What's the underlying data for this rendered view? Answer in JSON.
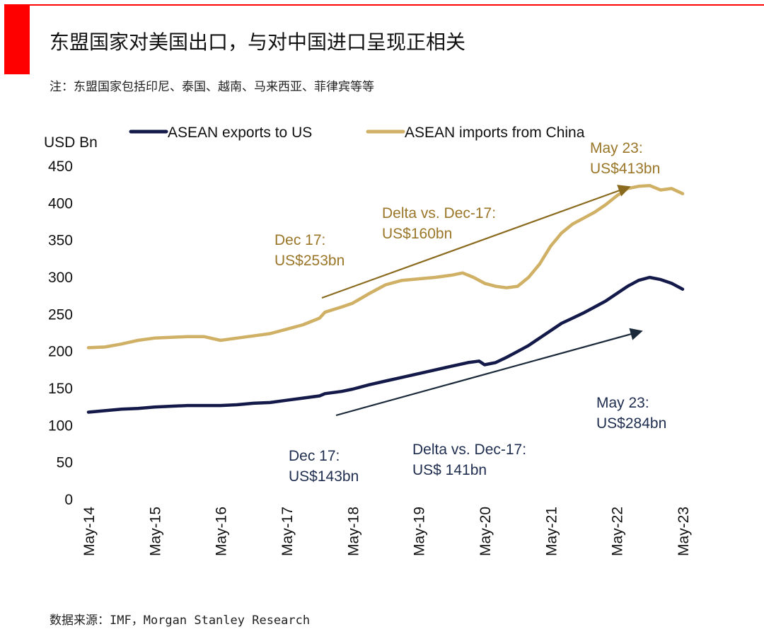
{
  "page": {
    "title": "东盟国家对美国出口，与对中国进口呈现正相关",
    "note": "注：东盟国家包括印尼、泰国、越南、马来西亚、菲律宾等等",
    "source": "数据来源：IMF，Morgan Stanley Research"
  },
  "colors": {
    "accent": "#ff0000",
    "exports": "#131a4a",
    "imports": "#cfb064",
    "imports_text": "#9a7628",
    "exports_text": "#1f2d4f"
  },
  "chart_data": {
    "type": "line",
    "ylabel": "USD Bn",
    "ylim": [
      0,
      450
    ],
    "yticks": [
      "0",
      "50",
      "100",
      "150",
      "200",
      "250",
      "300",
      "350",
      "400",
      "450"
    ],
    "xtick_labels": [
      "May-14",
      "May-15",
      "May-16",
      "May-17",
      "May-18",
      "May-19",
      "May-20",
      "May-21",
      "May-22",
      "May-23"
    ],
    "legend": [
      "ASEAN exports to US",
      "ASEAN imports from China"
    ],
    "legend_position": "top",
    "grid": false,
    "series": [
      {
        "name": "ASEAN exports to US",
        "color": "#131a4a",
        "points": [
          [
            "2014-05",
            118
          ],
          [
            "2014-08",
            120
          ],
          [
            "2014-11",
            122
          ],
          [
            "2015-02",
            123
          ],
          [
            "2015-05",
            125
          ],
          [
            "2015-08",
            126
          ],
          [
            "2015-11",
            127
          ],
          [
            "2016-02",
            127
          ],
          [
            "2016-05",
            127
          ],
          [
            "2016-08",
            128
          ],
          [
            "2016-11",
            130
          ],
          [
            "2017-02",
            131
          ],
          [
            "2017-05",
            134
          ],
          [
            "2017-08",
            137
          ],
          [
            "2017-11",
            140
          ],
          [
            "2017-12",
            143
          ],
          [
            "2018-03",
            146
          ],
          [
            "2018-05",
            149
          ],
          [
            "2018-08",
            155
          ],
          [
            "2018-11",
            160
          ],
          [
            "2019-02",
            165
          ],
          [
            "2019-05",
            170
          ],
          [
            "2019-08",
            175
          ],
          [
            "2019-11",
            180
          ],
          [
            "2020-02",
            185
          ],
          [
            "2020-04",
            187
          ],
          [
            "2020-05",
            182
          ],
          [
            "2020-07",
            185
          ],
          [
            "2020-09",
            192
          ],
          [
            "2020-11",
            200
          ],
          [
            "2021-01",
            208
          ],
          [
            "2021-03",
            218
          ],
          [
            "2021-05",
            228
          ],
          [
            "2021-07",
            238
          ],
          [
            "2021-09",
            245
          ],
          [
            "2021-11",
            252
          ],
          [
            "2022-01",
            260
          ],
          [
            "2022-03",
            268
          ],
          [
            "2022-05",
            278
          ],
          [
            "2022-07",
            288
          ],
          [
            "2022-09",
            296
          ],
          [
            "2022-11",
            300
          ],
          [
            "2023-01",
            297
          ],
          [
            "2023-03",
            292
          ],
          [
            "2023-05",
            284
          ]
        ]
      },
      {
        "name": "ASEAN imports from China",
        "color": "#cfb064",
        "points": [
          [
            "2014-05",
            205
          ],
          [
            "2014-08",
            206
          ],
          [
            "2014-11",
            210
          ],
          [
            "2015-02",
            215
          ],
          [
            "2015-05",
            218
          ],
          [
            "2015-08",
            219
          ],
          [
            "2015-11",
            220
          ],
          [
            "2016-02",
            220
          ],
          [
            "2016-05",
            215
          ],
          [
            "2016-08",
            218
          ],
          [
            "2016-11",
            221
          ],
          [
            "2017-02",
            224
          ],
          [
            "2017-05",
            230
          ],
          [
            "2017-08",
            236
          ],
          [
            "2017-11",
            245
          ],
          [
            "2017-12",
            253
          ],
          [
            "2018-03",
            260
          ],
          [
            "2018-05",
            265
          ],
          [
            "2018-08",
            278
          ],
          [
            "2018-11",
            290
          ],
          [
            "2019-02",
            296
          ],
          [
            "2019-05",
            298
          ],
          [
            "2019-08",
            300
          ],
          [
            "2019-11",
            303
          ],
          [
            "2020-01",
            306
          ],
          [
            "2020-03",
            300
          ],
          [
            "2020-05",
            292
          ],
          [
            "2020-07",
            288
          ],
          [
            "2020-09",
            286
          ],
          [
            "2020-11",
            288
          ],
          [
            "2021-01",
            300
          ],
          [
            "2021-03",
            318
          ],
          [
            "2021-05",
            342
          ],
          [
            "2021-07",
            360
          ],
          [
            "2021-09",
            372
          ],
          [
            "2021-11",
            380
          ],
          [
            "2022-01",
            388
          ],
          [
            "2022-03",
            398
          ],
          [
            "2022-05",
            410
          ],
          [
            "2022-07",
            420
          ],
          [
            "2022-09",
            423
          ],
          [
            "2022-11",
            424
          ],
          [
            "2023-01",
            418
          ],
          [
            "2023-03",
            420
          ],
          [
            "2023-05",
            413
          ]
        ]
      }
    ],
    "annotations": {
      "imports_dec17": [
        "Dec 17:",
        "US$253bn"
      ],
      "imports_delta": [
        "Delta vs. Dec-17:",
        "US$160bn"
      ],
      "imports_may23": [
        "May 23:",
        "US$413bn"
      ],
      "exports_dec17": [
        "Dec 17:",
        "US$143bn"
      ],
      "exports_delta": [
        "Delta vs. Dec-17:",
        "US$ 141bn"
      ],
      "exports_may23": [
        "May 23:",
        "US$284bn"
      ]
    }
  }
}
